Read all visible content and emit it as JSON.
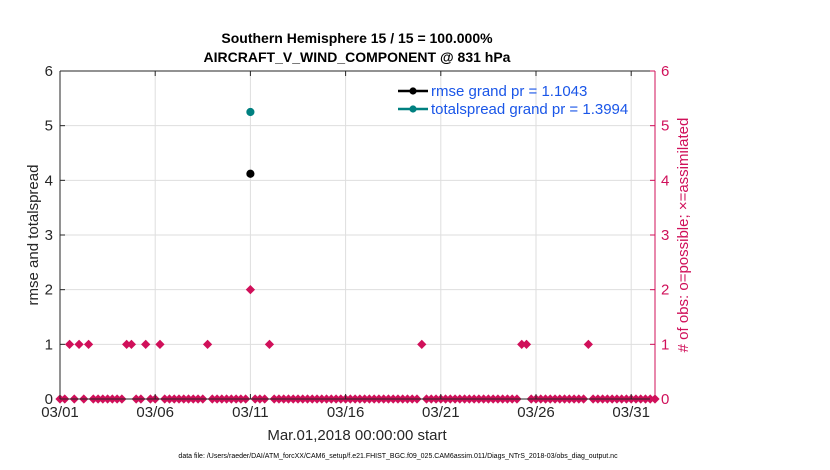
{
  "chart_data": {
    "type": "scatter",
    "title": "Southern Hemisphere 15 / 15 = 100.000%",
    "subtitle": "AIRCRAFT_V_WIND_COMPONENT @ 831 hPa",
    "xlabel": "Mar.01,2018 00:00:00 start",
    "ylabel": "rmse and totalspread",
    "ylabel_right": "# of obs: o=possible; ×=assimilated",
    "xlim": [
      1.0,
      32.25
    ],
    "ylim": [
      0,
      6
    ],
    "ylim_right": [
      0,
      6
    ],
    "x_ticks": [
      {
        "value": 1,
        "label": "03/01"
      },
      {
        "value": 6,
        "label": "03/06"
      },
      {
        "value": 11,
        "label": "03/11"
      },
      {
        "value": 16,
        "label": "03/16"
      },
      {
        "value": 21,
        "label": "03/21"
      },
      {
        "value": 26,
        "label": "03/26"
      },
      {
        "value": 31,
        "label": "03/31"
      }
    ],
    "y_ticks": [
      0,
      1,
      2,
      3,
      4,
      5,
      6
    ],
    "y_ticks_right": [
      0,
      1,
      2,
      3,
      4,
      5,
      6
    ],
    "series": [
      {
        "name": "rmse grand pr = 1.1043",
        "color": "#000000",
        "axis": "left",
        "x": [
          11.0
        ],
        "y": [
          4.12
        ]
      },
      {
        "name": "totalspread grand pr = 1.3994",
        "color": "#008080",
        "axis": "left",
        "x": [
          11.0
        ],
        "y": [
          5.25
        ]
      },
      {
        "name": "observations",
        "color": "#d0105a",
        "axis": "right",
        "x": [
          1.0,
          1.25,
          1.5,
          1.75,
          2.0,
          2.25,
          2.5,
          2.75,
          3.0,
          3.25,
          3.5,
          3.75,
          4.0,
          4.25,
          4.5,
          4.75,
          5.0,
          5.25,
          5.5,
          5.75,
          6.0,
          6.25,
          6.5,
          6.75,
          7.0,
          7.25,
          7.5,
          7.75,
          8.0,
          8.25,
          8.5,
          8.75,
          9.0,
          9.25,
          9.5,
          9.75,
          10.0,
          10.25,
          10.5,
          10.75,
          11.0,
          11.25,
          11.5,
          11.75,
          12.0,
          12.25,
          12.5,
          12.75,
          13.0,
          13.25,
          13.5,
          13.75,
          14.0,
          14.25,
          14.5,
          14.75,
          15.0,
          15.25,
          15.5,
          15.75,
          16.0,
          16.25,
          16.5,
          16.75,
          17.0,
          17.25,
          17.5,
          17.75,
          18.0,
          18.25,
          18.5,
          18.75,
          19.0,
          19.25,
          19.5,
          19.75,
          20.0,
          20.25,
          20.5,
          20.75,
          21.0,
          21.25,
          21.5,
          21.75,
          22.0,
          22.25,
          22.5,
          22.75,
          23.0,
          23.25,
          23.5,
          23.75,
          24.0,
          24.25,
          24.5,
          24.75,
          25.0,
          25.25,
          25.5,
          25.75,
          26.0,
          26.25,
          26.5,
          26.75,
          27.0,
          27.25,
          27.5,
          27.75,
          28.0,
          28.25,
          28.5,
          28.75,
          29.0,
          29.25,
          29.5,
          29.75,
          30.0,
          30.25,
          30.5,
          30.75,
          31.0,
          31.25,
          31.5,
          31.75,
          32.0,
          32.25
        ],
        "y": [
          0,
          0,
          1,
          0,
          1,
          0,
          1,
          0,
          0,
          0,
          0,
          0,
          0,
          0,
          1,
          1,
          0,
          0,
          1,
          0,
          0,
          1,
          0,
          0,
          0,
          0,
          0,
          0,
          0,
          0,
          0,
          1,
          0,
          0,
          0,
          0,
          0,
          0,
          0,
          0,
          2,
          0,
          0,
          0,
          1,
          0,
          0,
          0,
          0,
          0,
          0,
          0,
          0,
          0,
          0,
          0,
          0,
          0,
          0,
          0,
          0,
          0,
          0,
          0,
          0,
          0,
          0,
          0,
          0,
          0,
          0,
          0,
          0,
          0,
          0,
          0,
          1,
          0,
          0,
          0,
          0,
          0,
          0,
          0,
          0,
          0,
          0,
          0,
          0,
          0,
          0,
          0,
          0,
          0,
          0,
          0,
          0,
          1,
          1,
          0,
          0,
          0,
          0,
          0,
          0,
          0,
          0,
          0,
          0,
          0,
          0,
          1,
          0,
          0,
          0,
          0,
          0,
          0,
          0,
          0,
          0,
          0,
          0,
          0,
          0,
          0
        ]
      }
    ],
    "legend_position": "top-right",
    "grid": true
  },
  "footer": {
    "datafile": "data file: /Users/raeder/DAI/ATM_forcXX/CAM6_setup/f.e21.FHIST_BGC.f09_025.CAM6assim.011/Diags_NTrS_2018-03/obs_diag_output.nc"
  }
}
